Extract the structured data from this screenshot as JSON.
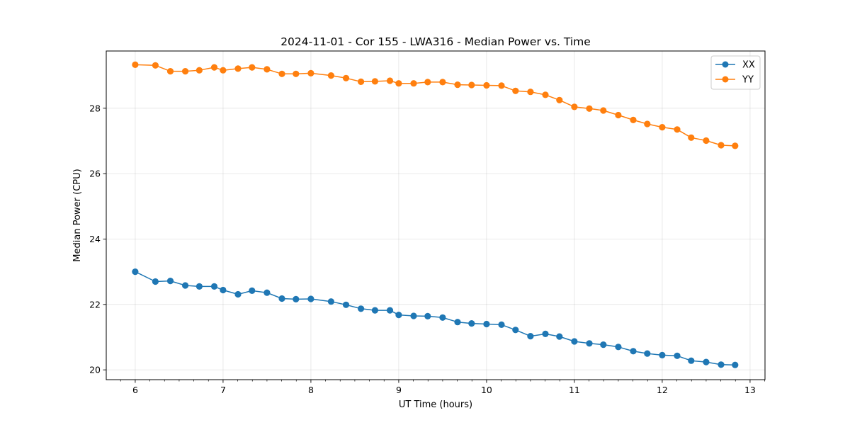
{
  "chart_data": {
    "type": "line",
    "title": "2024-11-01 - Cor 155 - LWA316 - Median Power vs. Time",
    "xlabel": "UT Time (hours)",
    "ylabel": "Median Power (CPU)",
    "xlim": [
      5.67,
      13.17
    ],
    "ylim": [
      19.7,
      29.75
    ],
    "xticks": [
      6,
      7,
      8,
      9,
      10,
      11,
      12,
      13
    ],
    "xtick_labels": [
      "6",
      "7",
      "8",
      "9",
      "10",
      "11",
      "12",
      "13"
    ],
    "yticks": [
      20,
      22,
      24,
      26,
      28
    ],
    "ytick_labels": [
      "20",
      "22",
      "24",
      "26",
      "28"
    ],
    "grid": true,
    "legend": "top-right",
    "x": [
      6.0,
      6.23,
      6.4,
      6.57,
      6.73,
      6.9,
      7.0,
      7.17,
      7.33,
      7.5,
      7.67,
      7.83,
      8.0,
      8.23,
      8.4,
      8.57,
      8.73,
      8.9,
      9.0,
      9.17,
      9.33,
      9.5,
      9.67,
      9.83,
      10.0,
      10.17,
      10.33,
      10.5,
      10.67,
      10.83,
      11.0,
      11.17,
      11.33,
      11.5,
      11.67,
      11.83,
      12.0,
      12.17,
      12.33,
      12.5,
      12.67,
      12.83
    ],
    "series": [
      {
        "name": "XX",
        "color": "#1f77b4",
        "values": [
          23.0,
          22.7,
          22.72,
          22.58,
          22.55,
          22.55,
          22.44,
          22.31,
          22.42,
          22.36,
          22.18,
          22.16,
          22.17,
          22.09,
          21.99,
          21.87,
          21.82,
          21.82,
          21.68,
          21.65,
          21.64,
          21.6,
          21.46,
          21.42,
          21.4,
          21.38,
          21.22,
          21.03,
          21.1,
          21.02,
          20.87,
          20.81,
          20.77,
          20.7,
          20.57,
          20.5,
          20.45,
          20.43,
          20.28,
          20.24,
          20.16,
          20.15
        ]
      },
      {
        "name": "YY",
        "color": "#ff7f0e",
        "values": [
          29.33,
          29.31,
          29.13,
          29.13,
          29.16,
          29.25,
          29.16,
          29.21,
          29.25,
          29.19,
          29.05,
          29.05,
          29.07,
          29.0,
          28.92,
          28.81,
          28.82,
          28.84,
          28.76,
          28.76,
          28.8,
          28.8,
          28.72,
          28.71,
          28.7,
          28.69,
          28.53,
          28.5,
          28.41,
          28.25,
          28.04,
          27.99,
          27.93,
          27.79,
          27.64,
          27.52,
          27.42,
          27.35,
          27.1,
          27.01,
          26.87,
          26.85
        ]
      }
    ]
  }
}
